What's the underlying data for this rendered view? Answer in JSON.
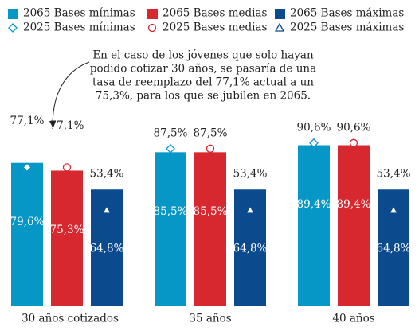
{
  "chart_data": {
    "type": "bar",
    "categories": [
      "30 años cotizados",
      "35 años",
      "40 años"
    ],
    "annotation": [
      "En el caso de los jóvenes que solo hayan",
      "podido cotizar 30 años, se pasaría de una",
      "tasa de reemplazo del 77,1% actual a un",
      "75,3%, para los que se jubilen en 2065."
    ],
    "series": [
      {
        "name": "2065 Bases mínimas",
        "kind": "bar",
        "color": "#0797c6",
        "values": [
          79.6,
          85.5,
          89.4
        ],
        "value_labels": [
          "79,6%",
          "85,5%",
          "89,4%"
        ]
      },
      {
        "name": "2065 Bases medias",
        "kind": "bar",
        "color": "#d7282f",
        "values": [
          75.3,
          85.5,
          89.4
        ],
        "value_labels": [
          "75,3%",
          "85,5%",
          "89,4%"
        ]
      },
      {
        "name": "2065 Bases máximas",
        "kind": "bar",
        "color": "#0c4a8e",
        "values": [
          64.8,
          64.8,
          64.8
        ],
        "value_labels": [
          "64,8%",
          "64,8%",
          "64,8%"
        ]
      },
      {
        "name": "2025 Bases mínimas",
        "kind": "marker",
        "marker": "diamond",
        "color": "#0797c6",
        "values": [
          77.1,
          87.5,
          90.6
        ],
        "value_labels": [
          "77,1%",
          "87,5%",
          "90,6%"
        ]
      },
      {
        "name": "2025 Bases medias",
        "kind": "marker",
        "marker": "circle",
        "color": "#d7282f",
        "values": [
          77.1,
          87.5,
          90.6
        ],
        "value_labels": [
          "77,1%",
          "87,5%",
          "90,6%"
        ]
      },
      {
        "name": "2025 Bases máximas",
        "kind": "marker",
        "marker": "triangle",
        "color": "#0c4a8e",
        "values": [
          53.4,
          53.4,
          53.4
        ],
        "value_labels": [
          "53,4%",
          "53,4%",
          "53,4%"
        ]
      }
    ]
  }
}
